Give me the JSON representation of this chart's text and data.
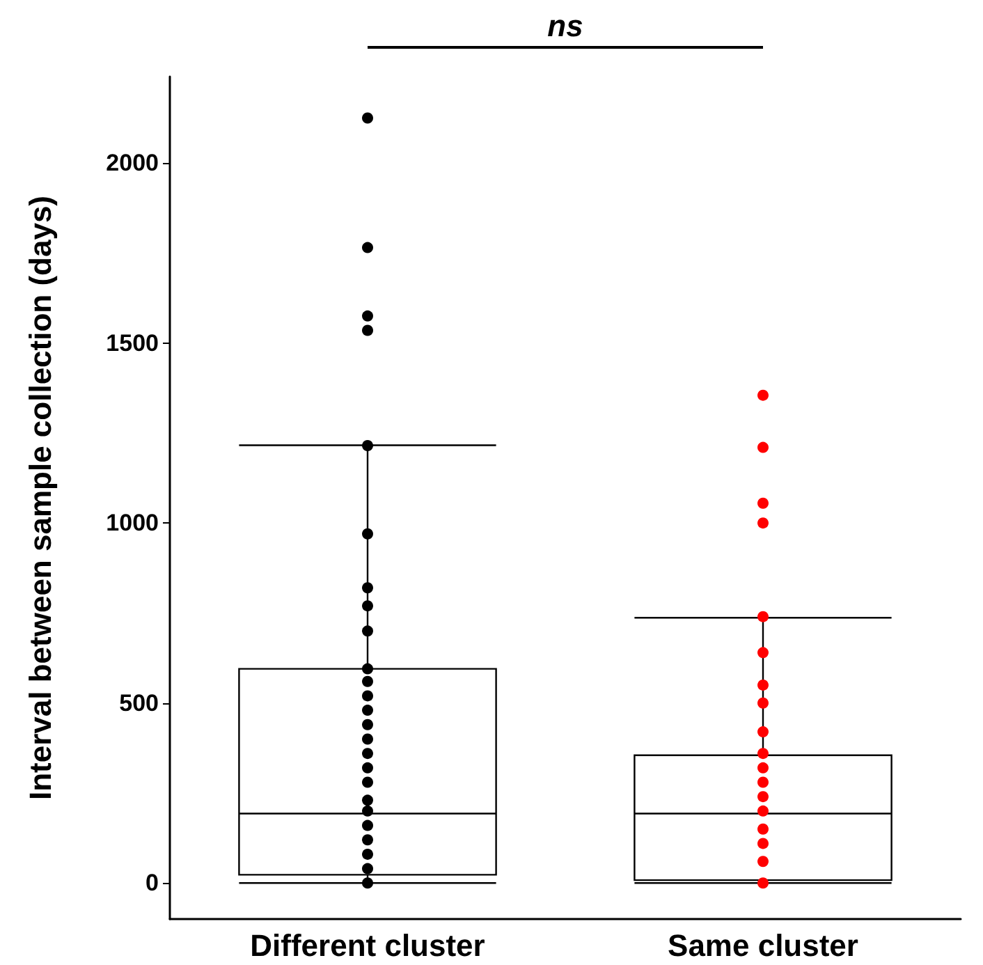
{
  "chart_data": {
    "type": "box",
    "categories": [
      "Different cluster",
      "Same cluster"
    ],
    "ylabel": "Interval between sample collection (days)",
    "ylim": [
      -100,
      2240
    ],
    "yticks": [
      0,
      500,
      1000,
      1500,
      2000
    ],
    "boxes": [
      {
        "low": 0,
        "q1": 23,
        "median": 193,
        "q3": 595,
        "high": 1216
      },
      {
        "low": 0,
        "q1": 8,
        "median": 193,
        "q3": 355,
        "high": 737
      }
    ],
    "series": [
      {
        "type": "scatter",
        "color": "#000000",
        "x": [
          "Different cluster",
          "Different cluster",
          "Different cluster",
          "Different cluster",
          "Different cluster",
          "Different cluster",
          "Different cluster",
          "Different cluster",
          "Different cluster",
          "Different cluster",
          "Different cluster",
          "Different cluster",
          "Different cluster",
          "Different cluster",
          "Different cluster",
          "Different cluster",
          "Different cluster",
          "Different cluster",
          "Different cluster",
          "Different cluster",
          "Different cluster",
          "Different cluster",
          "Different cluster",
          "Different cluster",
          "Different cluster"
        ],
        "values": [
          2125,
          1765,
          1575,
          1535,
          1215,
          970,
          820,
          770,
          700,
          595,
          560,
          520,
          480,
          440,
          400,
          360,
          320,
          280,
          230,
          200,
          160,
          120,
          80,
          40,
          0
        ]
      },
      {
        "type": "scatter",
        "color": "#ff0000",
        "x": [
          "Same cluster",
          "Same cluster",
          "Same cluster",
          "Same cluster",
          "Same cluster",
          "Same cluster",
          "Same cluster",
          "Same cluster",
          "Same cluster",
          "Same cluster",
          "Same cluster",
          "Same cluster",
          "Same cluster",
          "Same cluster",
          "Same cluster",
          "Same cluster",
          "Same cluster",
          "Same cluster"
        ],
        "values": [
          1355,
          1210,
          1055,
          1000,
          740,
          640,
          550,
          500,
          420,
          360,
          320,
          280,
          240,
          200,
          150,
          110,
          60,
          0
        ]
      }
    ],
    "annotations": [
      "ns"
    ],
    "marker": "circle",
    "grid": false
  }
}
